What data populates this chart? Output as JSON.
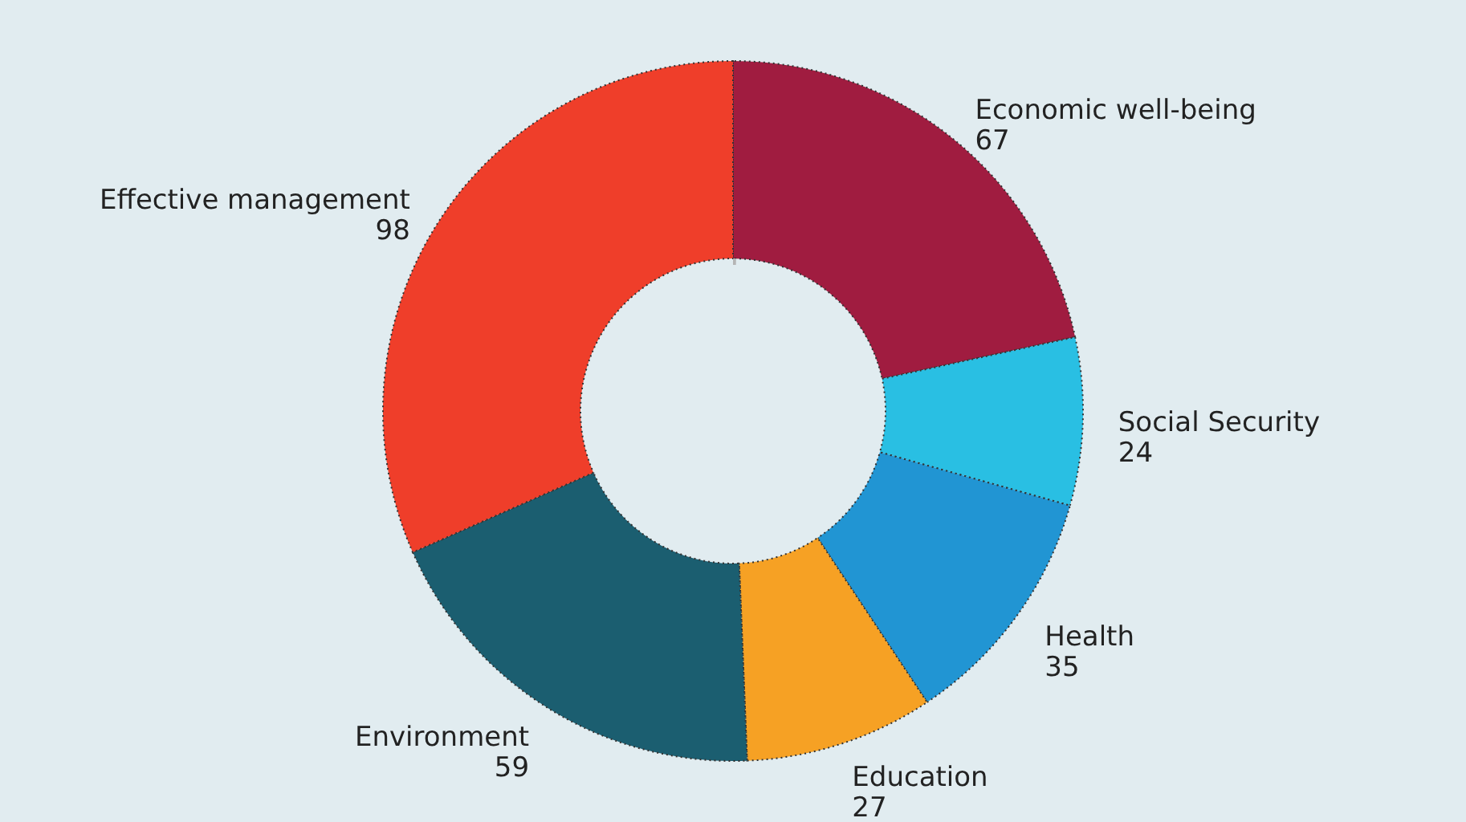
{
  "chart_data": {
    "type": "donut",
    "categories": [
      "Economic well-being",
      "Social Security",
      "Health",
      "Education",
      "Environment",
      "Effective management"
    ],
    "values": [
      67,
      24,
      35,
      27,
      59,
      98
    ],
    "colors": [
      "#a01c40",
      "#29bfe3",
      "#2195d3",
      "#f6a124",
      "#1b5e70",
      "#ef3e2a"
    ],
    "data_labels": true
  }
}
